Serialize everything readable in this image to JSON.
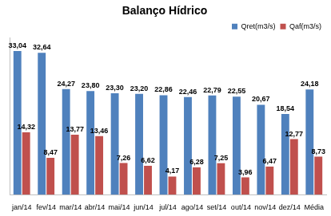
{
  "chart_data": {
    "type": "bar",
    "title": "Balanço Hídrico",
    "categories": [
      "jan/14",
      "fev/14",
      "mar/14",
      "abr/14",
      "mai/14",
      "jun/14",
      "jul/14",
      "ago/14",
      "set/14",
      "out/14",
      "nov/14",
      "dez/14",
      "Média"
    ],
    "series": [
      {
        "name": "Qret(m3/s)",
        "color": "#4f81bd",
        "values": [
          33.04,
          32.64,
          24.27,
          23.8,
          23.3,
          23.2,
          22.86,
          22.46,
          22.79,
          22.55,
          20.67,
          18.54,
          24.18
        ],
        "value_labels": [
          "33,04",
          "32,64",
          "24,27",
          "23,80",
          "23,30",
          "23,20",
          "22,86",
          "22,46",
          "22,79",
          "22,55",
          "20,67",
          "18,54",
          "24,18"
        ]
      },
      {
        "name": "Qaf(m3/s)",
        "color": "#c0504d",
        "values": [
          14.32,
          8.47,
          13.77,
          13.46,
          7.26,
          6.62,
          4.17,
          6.28,
          7.25,
          3.96,
          6.47,
          12.77,
          8.73
        ],
        "value_labels": [
          "14,32",
          "8,47",
          "13,77",
          "13,46",
          "7,26",
          "6,62",
          "4,17",
          "6,28",
          "7,25",
          "3,96",
          "6,47",
          "12,77",
          "8,73"
        ]
      }
    ],
    "ylim": [
      0,
      36
    ],
    "yticks": [],
    "grid": false,
    "legend": "top-right",
    "data_labels": true,
    "tick_labels": "x"
  }
}
